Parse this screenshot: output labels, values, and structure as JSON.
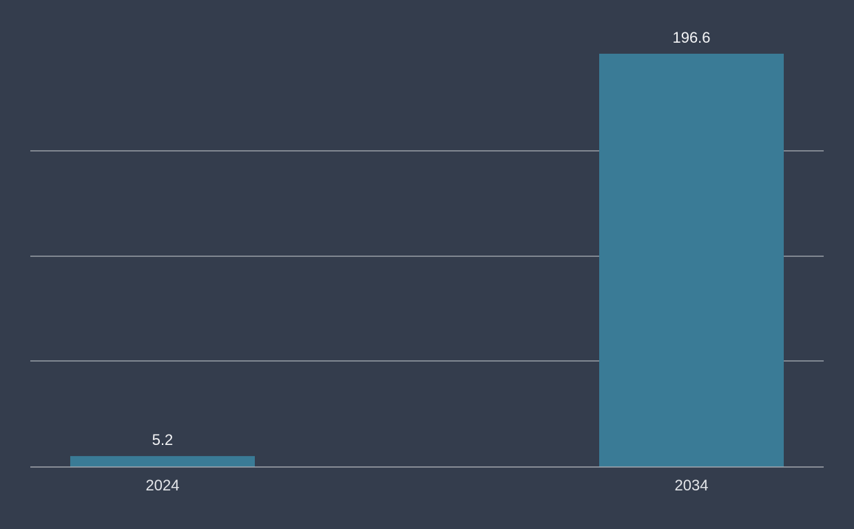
{
  "chart_data": {
    "type": "bar",
    "categories": [
      "2024",
      "2034"
    ],
    "values": [
      5.2,
      196.6
    ],
    "value_labels": [
      "5.2",
      "196.6"
    ],
    "title": "",
    "xlabel": "",
    "ylabel": "",
    "ylim": [
      0,
      196.6
    ],
    "grid": true,
    "bar_color": "#3a7b96",
    "background_color": "#343d4d"
  }
}
